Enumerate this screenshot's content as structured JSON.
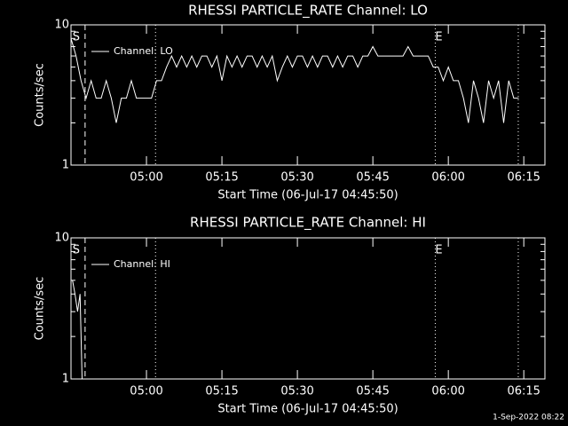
{
  "chart_data": [
    {
      "type": "line",
      "title": "RHESSI PARTICLE_RATE Channel: LO",
      "xlabel": "Start Time (06-Jul-17 04:45:50)",
      "ylabel": "Counts/sec",
      "log_y": true,
      "ylim": [
        1,
        10
      ],
      "yticks": [
        1,
        10
      ],
      "yminorticks": [
        2,
        3,
        4,
        5,
        6,
        7,
        8,
        9
      ],
      "xlim": [
        285,
        379.2
      ],
      "xticks": [
        {
          "value": 300,
          "label": "05:00"
        },
        {
          "value": 315,
          "label": "05:15"
        },
        {
          "value": 330,
          "label": "05:30"
        },
        {
          "value": 345,
          "label": "05:45"
        },
        {
          "value": 360,
          "label": "06:00"
        },
        {
          "value": 375,
          "label": "06:15"
        }
      ],
      "markers": [
        {
          "x": 287.8,
          "style": "dashed"
        },
        {
          "x": 301.8,
          "style": "dotted"
        },
        {
          "x": 357.4,
          "style": "dotted"
        },
        {
          "x": 373.9,
          "style": "dotted"
        }
      ],
      "annotations": [
        {
          "text": "S",
          "x": 285.3
        },
        {
          "text": "E",
          "x": 357.4
        }
      ],
      "series": [
        {
          "name": "Channel: LO",
          "color": "#ffffff",
          "x": [
            285,
            286,
            287,
            288,
            289,
            290,
            291,
            292,
            293,
            294,
            295,
            296,
            297,
            298,
            299,
            300,
            301,
            302,
            303,
            304,
            305,
            306,
            307,
            308,
            309,
            310,
            311,
            312,
            313,
            314,
            315,
            316,
            317,
            318,
            319,
            320,
            321,
            322,
            323,
            324,
            325,
            326,
            327,
            328,
            329,
            330,
            331,
            332,
            333,
            334,
            335,
            336,
            337,
            338,
            339,
            340,
            341,
            342,
            343,
            344,
            345,
            346,
            347,
            348,
            349,
            350,
            351,
            352,
            353,
            354,
            355,
            356,
            357,
            358,
            359,
            360,
            361,
            362,
            363,
            364,
            365,
            366,
            367,
            368,
            369,
            370,
            371,
            372,
            373,
            374
          ],
          "values": [
            8,
            6,
            4,
            3,
            4,
            3,
            3,
            4,
            3,
            2,
            3,
            3,
            4,
            3,
            3,
            3,
            3,
            4,
            4,
            5,
            6,
            5,
            6,
            5,
            6,
            5,
            6,
            6,
            5,
            6,
            4,
            6,
            5,
            6,
            5,
            6,
            6,
            5,
            6,
            5,
            6,
            4,
            5,
            6,
            5,
            6,
            6,
            5,
            6,
            5,
            6,
            6,
            5,
            6,
            5,
            6,
            6,
            5,
            6,
            6,
            7,
            6,
            6,
            6,
            6,
            6,
            6,
            7,
            6,
            6,
            6,
            6,
            5,
            5,
            4,
            5,
            4,
            4,
            3,
            2,
            4,
            3,
            2,
            4,
            3,
            4,
            2,
            4,
            3,
            3
          ]
        }
      ]
    },
    {
      "type": "line",
      "title": "RHESSI PARTICLE_RATE Channel: HI",
      "xlabel": "Start Time (06-Jul-17 04:45:50)",
      "ylabel": "Counts/sec",
      "log_y": true,
      "ylim": [
        1,
        10
      ],
      "yticks": [
        1,
        10
      ],
      "yminorticks": [
        2,
        3,
        4,
        5,
        6,
        7,
        8,
        9
      ],
      "xlim": [
        285,
        379.2
      ],
      "xticks": [
        {
          "value": 300,
          "label": "05:00"
        },
        {
          "value": 315,
          "label": "05:15"
        },
        {
          "value": 330,
          "label": "05:30"
        },
        {
          "value": 345,
          "label": "05:45"
        },
        {
          "value": 360,
          "label": "06:00"
        },
        {
          "value": 375,
          "label": "06:15"
        }
      ],
      "markers": [
        {
          "x": 287.8,
          "style": "dashed"
        },
        {
          "x": 301.8,
          "style": "dotted"
        },
        {
          "x": 357.4,
          "style": "dotted"
        },
        {
          "x": 373.9,
          "style": "dotted"
        }
      ],
      "annotations": [
        {
          "text": "S",
          "x": 285.3
        },
        {
          "text": "E",
          "x": 357.4
        }
      ],
      "series": [
        {
          "name": "Channel: HI",
          "color": "#ffffff",
          "x": [
            285.3,
            285.8,
            286.3,
            286.8,
            287.2
          ],
          "values": [
            5,
            4,
            3,
            4,
            1
          ]
        }
      ]
    }
  ],
  "footer": "1-Sep-2022 08:22"
}
